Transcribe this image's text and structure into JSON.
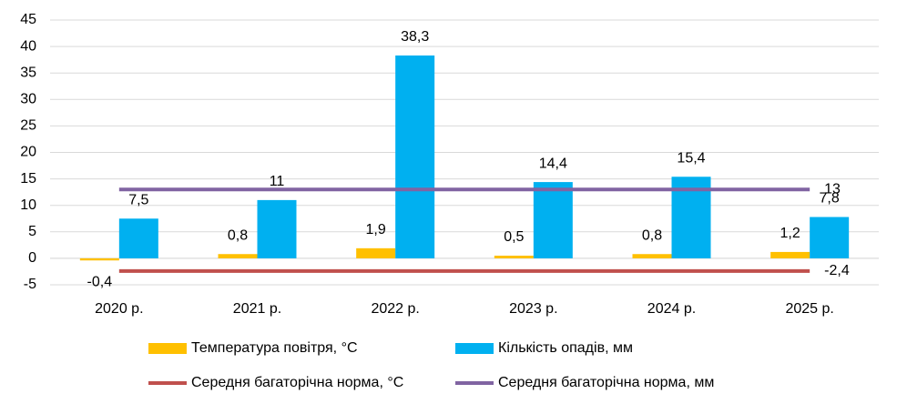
{
  "chart_data": {
    "type": "bar_line",
    "categories": [
      "2020 р.",
      "2021 р.",
      "2022 р.",
      "2023 р.",
      "2024 р.",
      "2025 р."
    ],
    "series": [
      {
        "name": "Температура повітря, °С",
        "type": "bar",
        "color": "#FFC000",
        "values": [
          -0.4,
          0.8,
          1.9,
          0.5,
          0.8,
          1.2
        ],
        "value_labels": [
          "-0,4",
          "0,8",
          "1,9",
          "0,5",
          "0,8",
          "1,2"
        ]
      },
      {
        "name": "Кількість опадів, мм",
        "type": "bar",
        "color": "#00B0F0",
        "values": [
          7.5,
          11,
          38.3,
          14.4,
          15.4,
          7.8
        ],
        "value_labels": [
          "7,5",
          "11",
          "38,3",
          "14,4",
          "15,4",
          "7,8"
        ]
      },
      {
        "name": "Середня багаторічна норма, °С",
        "type": "line",
        "color": "#C0504D",
        "values": [
          -2.4,
          -2.4,
          -2.4,
          -2.4,
          -2.4,
          -2.4
        ],
        "value_labels": [
          null,
          null,
          null,
          null,
          null,
          "-2,4"
        ]
      },
      {
        "name": "Середня багаторічна норма, мм",
        "type": "line",
        "color": "#8064A2",
        "values": [
          13,
          13,
          13,
          13,
          13,
          13
        ],
        "value_labels": [
          null,
          null,
          null,
          null,
          null,
          "13"
        ]
      }
    ],
    "ylim": [
      -5,
      45
    ],
    "yticks": [
      -5,
      0,
      5,
      10,
      15,
      20,
      25,
      30,
      35,
      40,
      45
    ],
    "grid": true,
    "legend": "bottom"
  }
}
